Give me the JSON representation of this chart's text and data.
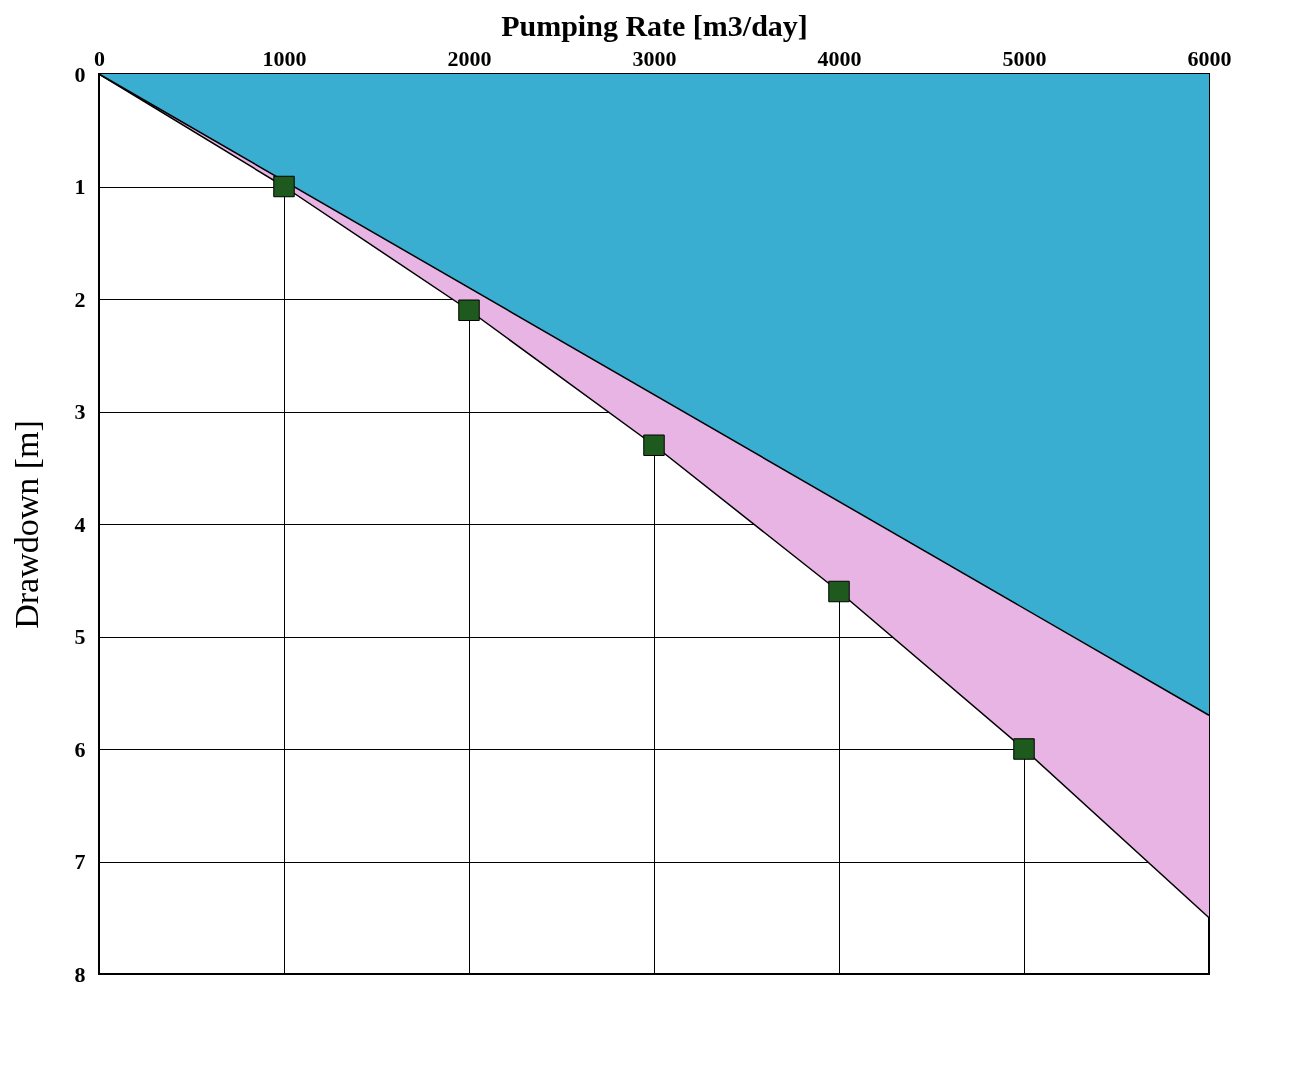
{
  "chart_data": {
    "type": "area",
    "xlabel": "Pumping Rate [m3/day]",
    "ylabel": "Drawdown [m]",
    "xlim": [
      0,
      6000
    ],
    "xticks": [
      0,
      1000,
      2000,
      3000,
      4000,
      5000,
      6000
    ],
    "ylim": [
      8,
      0
    ],
    "yticks": [
      0,
      1,
      2,
      3,
      4,
      5,
      6,
      7,
      8
    ],
    "grid": true,
    "series": [
      {
        "color": "#e8b4e4",
        "x": [
          0,
          1000,
          2000,
          3000,
          4000,
          5000,
          6000
        ],
        "values": [
          0,
          1.0,
          2.1,
          3.3,
          4.6,
          6.0,
          7.5
        ]
      },
      {
        "color": "#3aaed0",
        "x": [
          0,
          6000
        ],
        "values": [
          0,
          5.7
        ]
      },
      {
        "type": "scatter",
        "marker": "square",
        "color": "#1e5a1e",
        "x": [
          1000,
          2000,
          3000,
          4000,
          5000
        ],
        "values": [
          1.0,
          2.1,
          3.3,
          4.6,
          6.0
        ]
      }
    ]
  }
}
